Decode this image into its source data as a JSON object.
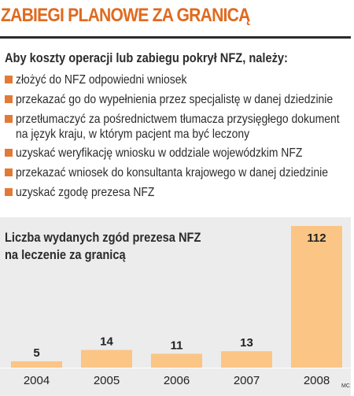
{
  "header": {
    "title": "ZABIEGI PLANOWE ZA GRANICĄ"
  },
  "intro": "Aby koszty operacji lub zabiegu pokrył NFZ, należy:",
  "steps": [
    {
      "lines": [
        "złożyć do NFZ odpowiedni wniosek"
      ]
    },
    {
      "lines": [
        "przekazać go do wypełnienia przez specjalistę w danej dziedzinie"
      ]
    },
    {
      "lines": [
        "przetłumaczyć za pośrednictwem tłumacza przysięgłego dokument",
        "na język kraju, w którym pacjent ma być leczony"
      ]
    },
    {
      "lines": [
        "uzyskać weryfikację wniosku w oddziale wojewódzkim NFZ"
      ]
    },
    {
      "lines": [
        "przekazać wniosek do konsultanta krajowego w danej dziedzinie"
      ]
    },
    {
      "lines": [
        "uzyskać zgodę prezesa NFZ"
      ]
    }
  ],
  "chart_data": {
    "type": "bar",
    "title_lines": [
      "Liczba wydanych zgód prezesa NFZ",
      "na leczenie za granicą"
    ],
    "categories": [
      "2004",
      "2005",
      "2006",
      "2007",
      "2008"
    ],
    "values": [
      5,
      14,
      11,
      13,
      112
    ],
    "ylim": [
      0,
      112
    ],
    "grid": false,
    "data_labels": true,
    "colors": {
      "bar": "#fbc585",
      "panel": "#ececec",
      "accent": "#e06a1f"
    }
  },
  "credit": "MC"
}
